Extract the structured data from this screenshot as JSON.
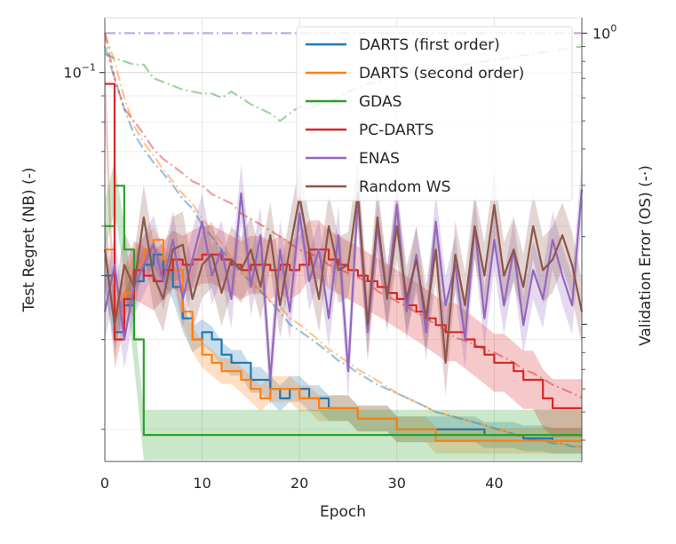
{
  "chart_data": {
    "type": "line",
    "title": "",
    "xlabel": "Epoch",
    "ylabel_left": "Test Regret (NB) (-)",
    "ylabel_right": "Validation Error (OS) (-·)",
    "x_ticks": [
      0,
      10,
      20,
      30,
      40
    ],
    "x_tick_labels": [
      "0",
      "10",
      "20",
      "30",
      "40"
    ],
    "xlim": [
      0,
      49
    ],
    "ylim_left": [
      0.0173,
      0.128
    ],
    "ylim_right": [
      0.0338,
      1.13
    ],
    "y_scale": "log",
    "y_left_major_ticks": [
      {
        "value": 0.1,
        "base": "10",
        "exp": "−1"
      }
    ],
    "y_right_major_ticks": [
      {
        "value": 1.0,
        "base": "10",
        "exp": "0"
      }
    ],
    "grid": true,
    "legend_position": "top-right",
    "series": [
      {
        "name": "DARTS (first order)",
        "color": "#1f77b4",
        "x": [
          0,
          1,
          2,
          3,
          4,
          5,
          6,
          7,
          8,
          9,
          10,
          11,
          12,
          13,
          14,
          15,
          16,
          17,
          18,
          19,
          20,
          21,
          22,
          23,
          24,
          25,
          26,
          27,
          28,
          29,
          30,
          31,
          32,
          33,
          34,
          35,
          36,
          37,
          38,
          39,
          40,
          41,
          42,
          43,
          44,
          45,
          46,
          47,
          48,
          49
        ],
        "nb": [
          0.04,
          0.031,
          0.035,
          0.039,
          0.042,
          0.044,
          0.041,
          0.038,
          0.033,
          0.03,
          0.031,
          0.03,
          0.028,
          0.027,
          0.027,
          0.025,
          0.025,
          0.024,
          0.023,
          0.024,
          0.024,
          0.023,
          0.023,
          0.022,
          0.022,
          0.022,
          0.021,
          0.021,
          0.021,
          0.021,
          0.02,
          0.02,
          0.02,
          0.02,
          0.02,
          0.02,
          0.02,
          0.02,
          0.02,
          0.0195,
          0.0195,
          0.0195,
          0.0195,
          0.0192,
          0.0192,
          0.0192,
          0.019,
          0.019,
          0.019,
          0.019
        ],
        "nb_band": 0.06,
        "os": [
          0.9,
          0.7,
          0.55,
          0.45,
          0.4,
          0.36,
          0.33,
          0.3,
          0.27,
          0.25,
          0.22,
          0.2,
          0.18,
          0.165,
          0.15,
          0.14,
          0.13,
          0.12,
          0.11,
          0.1,
          0.095,
          0.09,
          0.085,
          0.08,
          0.075,
          0.072,
          0.068,
          0.065,
          0.062,
          0.06,
          0.058,
          0.056,
          0.054,
          0.052,
          0.05,
          0.049,
          0.048,
          0.047,
          0.046,
          0.045,
          0.044,
          0.043,
          0.042,
          0.041,
          0.04,
          0.04,
          0.039,
          0.039,
          0.038,
          0.038
        ]
      },
      {
        "name": "DARTS (second order)",
        "color": "#ff7f0e",
        "x": [
          0,
          1,
          2,
          3,
          4,
          5,
          6,
          7,
          8,
          9,
          10,
          11,
          12,
          13,
          14,
          15,
          16,
          17,
          18,
          19,
          20,
          21,
          22,
          23,
          24,
          25,
          26,
          27,
          28,
          29,
          30,
          31,
          32,
          33,
          34,
          35,
          36,
          37,
          38,
          39,
          40,
          41,
          42,
          43,
          44,
          45,
          46,
          47,
          48,
          49
        ],
        "nb": [
          0.045,
          0.034,
          0.037,
          0.042,
          0.045,
          0.047,
          0.043,
          0.041,
          0.034,
          0.03,
          0.028,
          0.027,
          0.026,
          0.026,
          0.025,
          0.024,
          0.023,
          0.024,
          0.024,
          0.024,
          0.023,
          0.023,
          0.022,
          0.022,
          0.022,
          0.022,
          0.021,
          0.021,
          0.021,
          0.021,
          0.02,
          0.02,
          0.02,
          0.02,
          0.019,
          0.019,
          0.019,
          0.019,
          0.019,
          0.019,
          0.019,
          0.019,
          0.019,
          0.019,
          0.019,
          0.019,
          0.019,
          0.019,
          0.019,
          0.019
        ],
        "nb_band": 0.06,
        "os": [
          1.0,
          0.8,
          0.6,
          0.48,
          0.42,
          0.38,
          0.34,
          0.31,
          0.28,
          0.26,
          0.23,
          0.21,
          0.19,
          0.17,
          0.155,
          0.14,
          0.13,
          0.12,
          0.115,
          0.105,
          0.1,
          0.094,
          0.088,
          0.082,
          0.078,
          0.074,
          0.07,
          0.067,
          0.064,
          0.061,
          0.058,
          0.056,
          0.054,
          0.052,
          0.05,
          0.049,
          0.048,
          0.047,
          0.046,
          0.045,
          0.044,
          0.043,
          0.042,
          0.041,
          0.04,
          0.04,
          0.039,
          0.039,
          0.038,
          0.038
        ]
      },
      {
        "name": "GDAS",
        "color": "#2ca02c",
        "x": [
          0,
          1,
          2,
          3,
          4,
          5,
          6,
          7,
          8,
          9,
          10,
          11,
          12,
          13,
          14,
          15,
          16,
          17,
          18,
          19,
          20,
          21,
          22,
          23,
          24,
          25,
          26,
          27,
          28,
          29,
          30,
          31,
          32,
          33,
          34,
          35,
          36,
          37,
          38,
          39,
          40,
          41,
          42,
          43,
          44,
          45,
          46,
          47,
          48,
          49
        ],
        "nb": [
          0.05,
          0.06,
          0.045,
          0.03,
          0.0195,
          0.0195,
          0.0195,
          0.0195,
          0.0195,
          0.0195,
          0.0195,
          0.0195,
          0.0195,
          0.0195,
          0.0195,
          0.0195,
          0.0195,
          0.0195,
          0.0195,
          0.0195,
          0.0195,
          0.0195,
          0.0195,
          0.0195,
          0.0195,
          0.0195,
          0.0195,
          0.0195,
          0.0195,
          0.0195,
          0.0195,
          0.0195,
          0.0195,
          0.0195,
          0.0195,
          0.0195,
          0.0195,
          0.0195,
          0.0195,
          0.0195,
          0.0195,
          0.0195,
          0.0195,
          0.0195,
          0.0195,
          0.0195,
          0.0195,
          0.0195,
          0.0195,
          0.0195
        ],
        "nb_band": 0.12,
        "os": [
          0.85,
          0.82,
          0.8,
          0.78,
          0.78,
          0.7,
          0.68,
          0.66,
          0.64,
          0.63,
          0.62,
          0.62,
          0.6,
          0.63,
          0.6,
          0.57,
          0.55,
          0.53,
          0.5,
          0.53,
          0.56,
          0.55,
          0.57,
          0.58,
          0.6,
          0.63,
          0.65,
          0.67,
          0.68,
          0.7,
          0.72,
          0.73,
          0.74,
          0.75,
          0.76,
          0.76,
          0.77,
          0.78,
          0.79,
          0.8,
          0.81,
          0.82,
          0.83,
          0.84,
          0.85,
          0.86,
          0.87,
          0.88,
          0.89,
          0.9
        ]
      },
      {
        "name": "PC-DARTS",
        "color": "#d62728",
        "x": [
          0,
          1,
          2,
          3,
          4,
          5,
          6,
          7,
          8,
          9,
          10,
          11,
          12,
          13,
          14,
          15,
          16,
          17,
          18,
          19,
          20,
          21,
          22,
          23,
          24,
          25,
          26,
          27,
          28,
          29,
          30,
          31,
          32,
          33,
          34,
          35,
          36,
          37,
          38,
          39,
          40,
          41,
          42,
          43,
          44,
          45,
          46,
          47,
          48,
          49
        ],
        "nb": [
          0.095,
          0.03,
          0.036,
          0.041,
          0.04,
          0.039,
          0.041,
          0.043,
          0.042,
          0.043,
          0.044,
          0.044,
          0.043,
          0.042,
          0.041,
          0.042,
          0.042,
          0.041,
          0.042,
          0.041,
          0.042,
          0.045,
          0.045,
          0.043,
          0.042,
          0.041,
          0.04,
          0.039,
          0.038,
          0.037,
          0.036,
          0.035,
          0.034,
          0.033,
          0.032,
          0.031,
          0.031,
          0.03,
          0.029,
          0.028,
          0.027,
          0.027,
          0.026,
          0.025,
          0.025,
          0.023,
          0.022,
          0.022,
          0.022,
          0.022
        ],
        "nb_band": 0.14,
        "os": [
          1.0,
          0.7,
          0.55,
          0.5,
          0.45,
          0.4,
          0.37,
          0.35,
          0.33,
          0.31,
          0.3,
          0.28,
          0.27,
          0.26,
          0.24,
          0.23,
          0.22,
          0.21,
          0.2,
          0.19,
          0.18,
          0.175,
          0.17,
          0.16,
          0.155,
          0.15,
          0.145,
          0.14,
          0.13,
          0.125,
          0.12,
          0.115,
          0.11,
          0.105,
          0.1,
          0.095,
          0.09,
          0.088,
          0.085,
          0.082,
          0.08,
          0.077,
          0.074,
          0.07,
          0.068,
          0.065,
          0.062,
          0.06,
          0.058,
          0.056
        ]
      },
      {
        "name": "ENAS",
        "color": "#9467bd",
        "x": [
          0,
          1,
          2,
          3,
          4,
          5,
          6,
          7,
          8,
          9,
          10,
          11,
          12,
          13,
          14,
          15,
          16,
          17,
          18,
          19,
          20,
          21,
          22,
          23,
          24,
          25,
          26,
          27,
          28,
          29,
          30,
          31,
          32,
          33,
          34,
          35,
          36,
          37,
          38,
          39,
          40,
          41,
          42,
          43,
          44,
          45,
          46,
          47,
          48,
          49
        ],
        "nb": [
          0.034,
          0.042,
          0.03,
          0.038,
          0.042,
          0.046,
          0.039,
          0.047,
          0.036,
          0.043,
          0.051,
          0.04,
          0.045,
          0.036,
          0.058,
          0.038,
          0.048,
          0.025,
          0.045,
          0.034,
          0.053,
          0.039,
          0.045,
          0.033,
          0.048,
          0.026,
          0.057,
          0.031,
          0.05,
          0.036,
          0.055,
          0.034,
          0.044,
          0.031,
          0.051,
          0.035,
          0.042,
          0.03,
          0.05,
          0.033,
          0.047,
          0.035,
          0.045,
          0.032,
          0.041,
          0.036,
          0.047,
          0.04,
          0.035,
          0.059
        ],
        "nb_band": 0.14
      },
      {
        "name": "Random WS",
        "color": "#8c564b",
        "x": [
          0,
          1,
          2,
          3,
          4,
          5,
          6,
          7,
          8,
          9,
          10,
          11,
          12,
          13,
          14,
          15,
          16,
          17,
          18,
          19,
          20,
          21,
          22,
          23,
          24,
          25,
          26,
          27,
          28,
          29,
          30,
          31,
          32,
          33,
          34,
          35,
          36,
          37,
          38,
          39,
          40,
          41,
          42,
          43,
          44,
          45,
          46,
          47,
          48,
          49
        ],
        "nb": [
          0.045,
          0.032,
          0.042,
          0.038,
          0.052,
          0.04,
          0.036,
          0.045,
          0.046,
          0.036,
          0.042,
          0.044,
          0.037,
          0.043,
          0.041,
          0.045,
          0.038,
          0.048,
          0.035,
          0.045,
          0.057,
          0.045,
          0.036,
          0.05,
          0.041,
          0.042,
          0.058,
          0.032,
          0.052,
          0.036,
          0.05,
          0.036,
          0.043,
          0.033,
          0.045,
          0.027,
          0.044,
          0.035,
          0.05,
          0.04,
          0.055,
          0.04,
          0.045,
          0.038,
          0.05,
          0.041,
          0.043,
          0.048,
          0.042,
          0.034
        ],
        "nb_band": 0.16
      }
    ],
    "os_reference": {
      "color": "#9467bd",
      "os_value": 1.0,
      "style": "dash-dot"
    }
  }
}
